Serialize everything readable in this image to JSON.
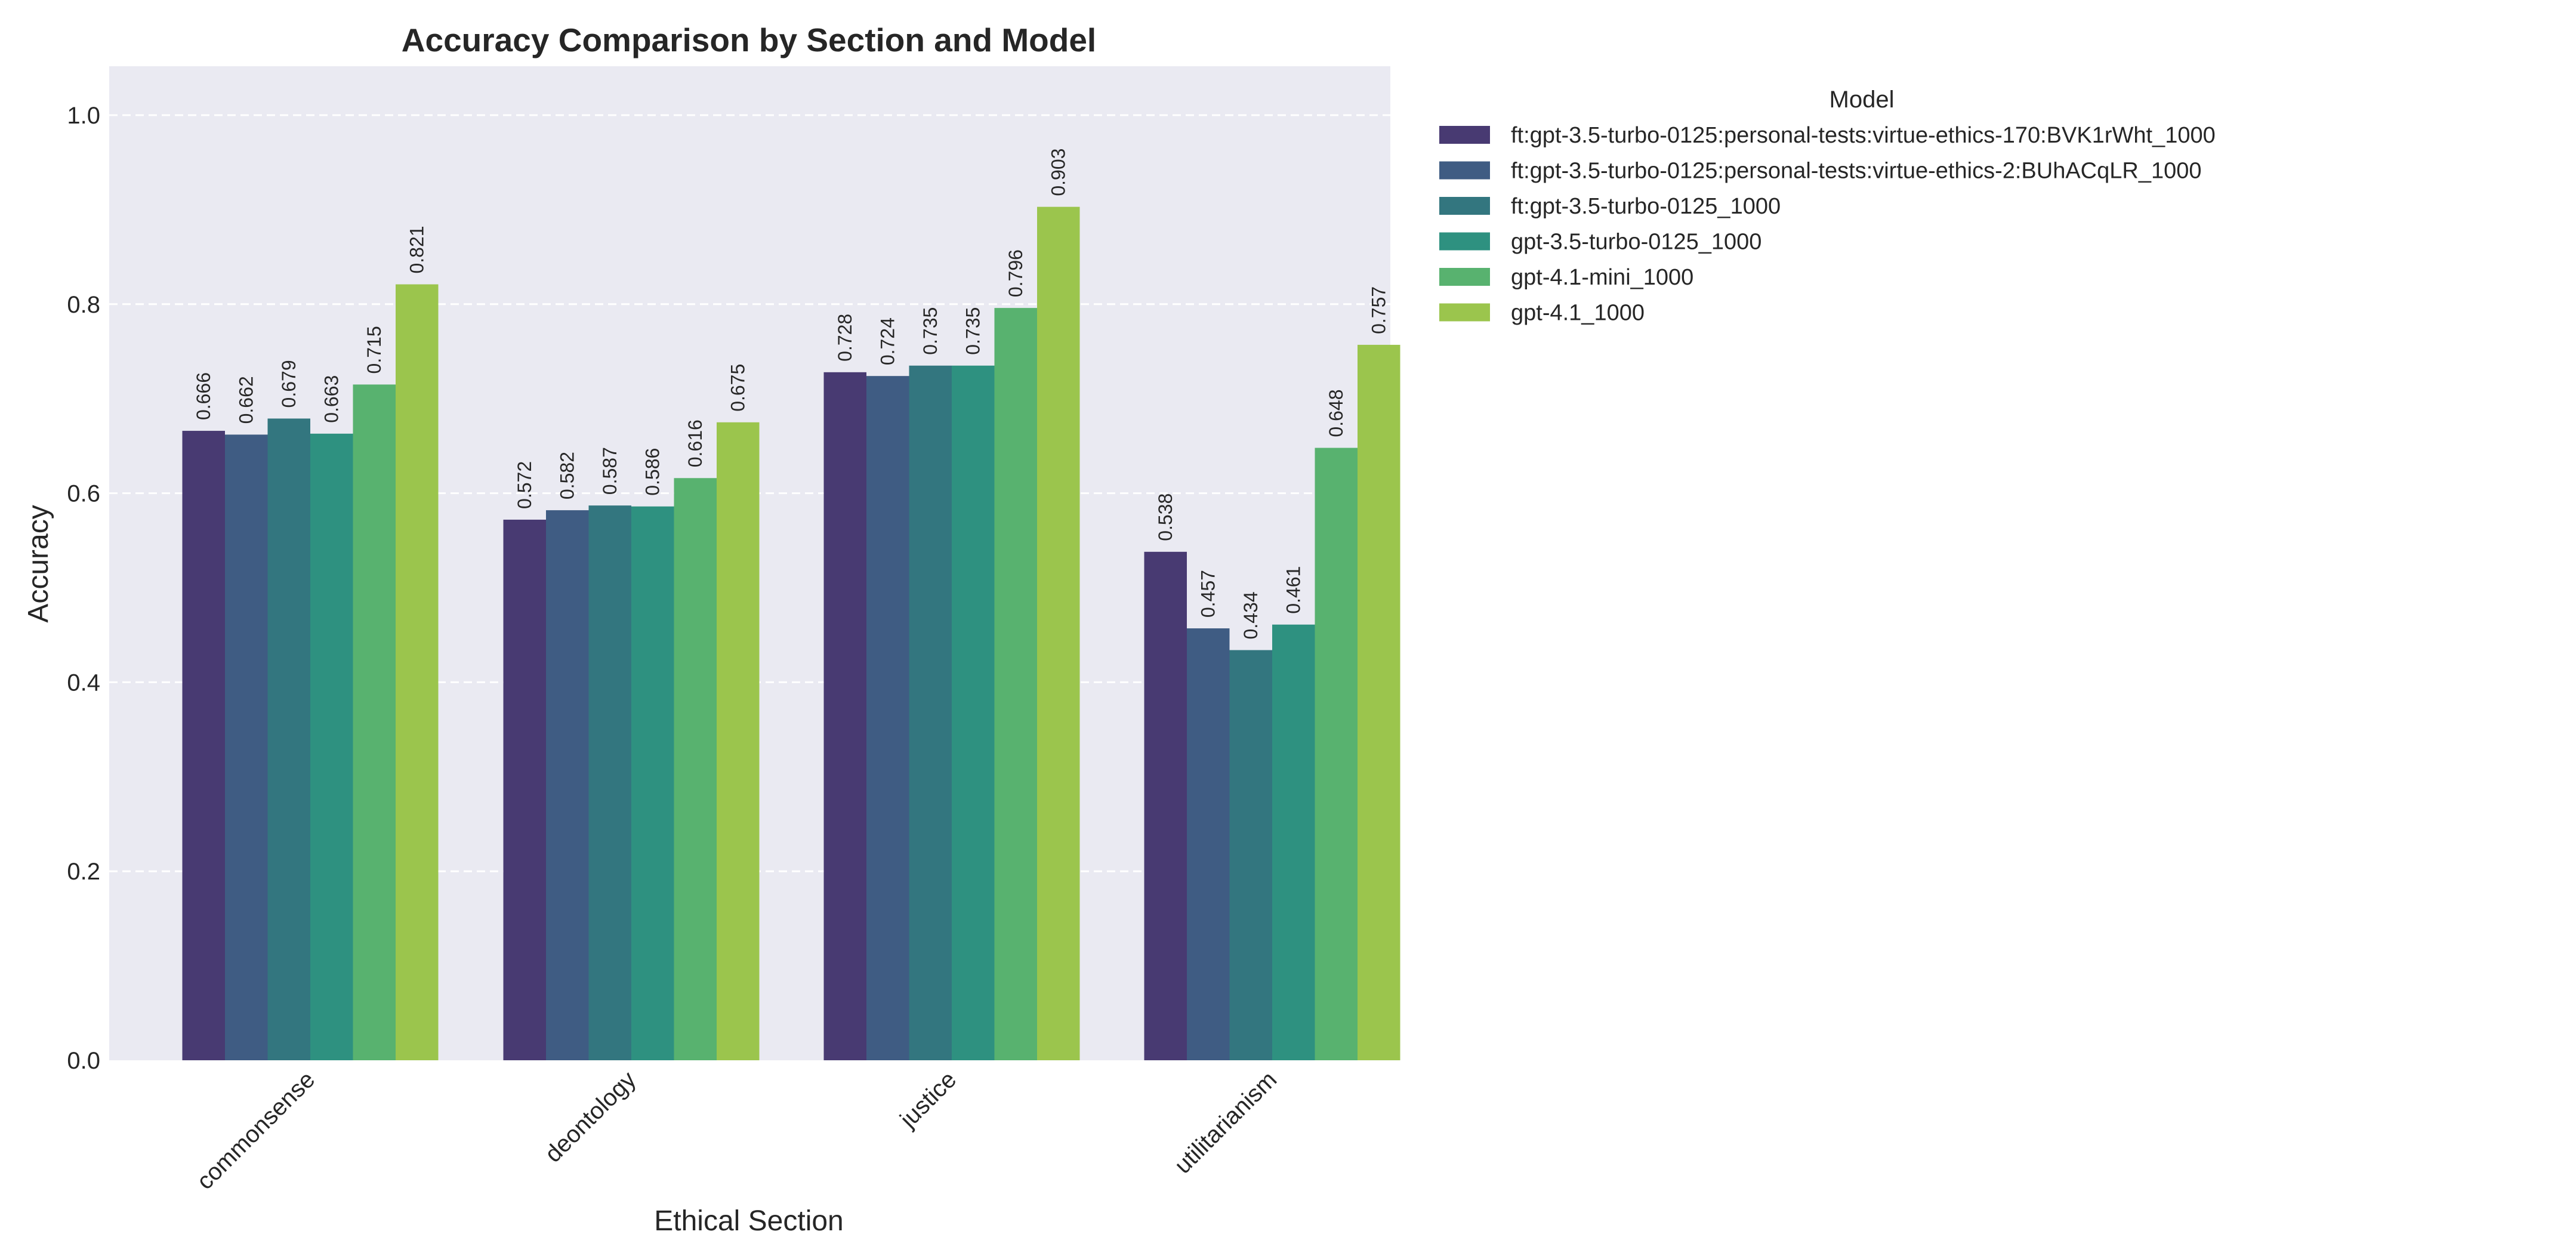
{
  "chart_data": {
    "type": "bar",
    "title": "Accuracy Comparison by Section and Model",
    "xlabel": "Ethical Section",
    "ylabel": "Accuracy",
    "ylim": [
      0,
      1.05
    ],
    "yticks": [
      "0.0",
      "0.2",
      "0.4",
      "0.6",
      "0.8",
      "1.0"
    ],
    "grid": true,
    "legend_title": "Model",
    "legend_position": "outside-right-top",
    "categories": [
      "commonsense",
      "deontology",
      "justice",
      "utilitarianism"
    ],
    "series": [
      {
        "name": "ft:gpt-3.5-turbo-0125:personal-tests:virtue-ethics-170:BVK1rWht_1000",
        "color": "#483A72",
        "values": [
          0.666,
          0.572,
          0.728,
          0.538
        ],
        "labels": [
          "0.666",
          "0.572",
          "0.728",
          "0.538"
        ]
      },
      {
        "name": "ft:gpt-3.5-turbo-0125:personal-tests:virtue-ethics-2:BUhACqLR_1000",
        "color": "#3F5C83",
        "values": [
          0.662,
          0.582,
          0.724,
          0.457
        ],
        "labels": [
          "0.662",
          "0.582",
          "0.724",
          "0.457"
        ]
      },
      {
        "name": "ft:gpt-3.5-turbo-0125_1000",
        "color": "#33767F",
        "values": [
          0.679,
          0.587,
          0.735,
          0.434
        ],
        "labels": [
          "0.679",
          "0.587",
          "0.735",
          "0.434"
        ]
      },
      {
        "name": "gpt-3.5-turbo-0125_1000",
        "color": "#2E9180",
        "values": [
          0.663,
          0.586,
          0.735,
          0.461
        ],
        "labels": [
          "0.663",
          "0.586",
          "0.735",
          "0.461"
        ]
      },
      {
        "name": "gpt-4.1-mini_1000",
        "color": "#58B26F",
        "values": [
          0.715,
          0.616,
          0.796,
          0.648
        ],
        "labels": [
          "0.715",
          "0.616",
          "0.796",
          "0.648"
        ]
      },
      {
        "name": "gpt-4.1_1000",
        "color": "#9BC54D",
        "values": [
          0.821,
          0.675,
          0.903,
          0.757
        ],
        "labels": [
          "0.821",
          "0.675",
          "0.903",
          "0.757"
        ]
      }
    ],
    "colors": {
      "plot_background": "#EAEAF2",
      "grid": "#FFFFFF"
    }
  }
}
